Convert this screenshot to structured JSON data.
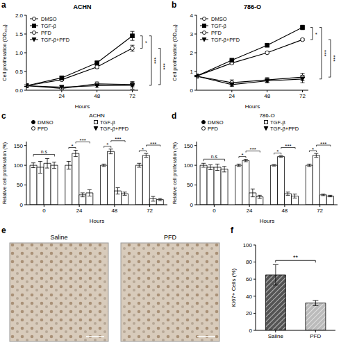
{
  "chart_data": [
    {
      "panel": "a",
      "type": "line",
      "title": "ACHN",
      "x_label": "Hours",
      "y_label": "Cell proliferation (OD₄₅₀)",
      "x": [
        0,
        24,
        48,
        72
      ],
      "xlim": [
        0,
        76
      ],
      "xticks": [
        24,
        48,
        72
      ],
      "ylim": [
        0,
        2
      ],
      "yticks": [
        {
          "value": 0,
          "label": "0.0"
        },
        {
          "value": 0.5,
          "label": "0.5"
        },
        {
          "value": 1,
          "label": "1.0"
        },
        {
          "value": 1.5,
          "label": "1.5"
        },
        {
          "value": 2,
          "label": "2.0"
        }
      ],
      "series": [
        {
          "name": "DMSO",
          "color": "#000000",
          "marker": "open_circle",
          "values": [
            0.12,
            0.28,
            0.62,
            1.12
          ],
          "errors": [
            0.02,
            0.03,
            0.04,
            0.08
          ]
        },
        {
          "name": "TGF-β",
          "color": "#000000",
          "marker": "square",
          "values": [
            0.12,
            0.33,
            0.73,
            1.45
          ],
          "errors": [
            0.02,
            0.03,
            0.04,
            0.12
          ]
        },
        {
          "name": "PFD",
          "color": "#000000",
          "marker": "open_circle",
          "values": [
            0.12,
            0.05,
            0.17,
            0.15
          ],
          "errors": [
            0.02,
            0.02,
            0.05,
            0.06
          ]
        },
        {
          "name": "TGF-β+PFD",
          "color": "#000000",
          "marker": "triangle_down",
          "values": [
            0.12,
            0.08,
            0.12,
            0.13
          ],
          "errors": [
            0.02,
            0.02,
            0.04,
            0.1
          ]
        }
      ],
      "annotations": [
        {
          "text": "*",
          "between": [
            "DMSO",
            "TGF-β"
          ]
        },
        {
          "text": "***",
          "between": [
            "TGF-β",
            "TGF-β+PFD"
          ]
        },
        {
          "text": "***",
          "between": [
            "DMSO",
            "PFD"
          ]
        }
      ]
    },
    {
      "panel": "b",
      "type": "line",
      "title": "786-O",
      "x_label": "Hours",
      "y_label": "Cell proliferation (OD₄₅₀)",
      "x": [
        0,
        24,
        48,
        72
      ],
      "xlim": [
        0,
        76
      ],
      "xticks": [
        24,
        48,
        72
      ],
      "ylim": [
        0,
        4
      ],
      "yticks": [
        0,
        1,
        2,
        3,
        4
      ],
      "series": [
        {
          "name": "DMSO",
          "color": "#000000",
          "marker": "open_circle",
          "values": [
            0.75,
            1.45,
            2.0,
            2.7
          ],
          "errors": [
            0.03,
            0.04,
            0.04,
            0.05
          ]
        },
        {
          "name": "TGF-β",
          "color": "#000000",
          "marker": "square",
          "values": [
            0.75,
            1.6,
            2.4,
            3.35
          ],
          "errors": [
            0.03,
            0.04,
            0.05,
            0.12
          ]
        },
        {
          "name": "PFD",
          "color": "#000000",
          "marker": "open_circle",
          "values": [
            0.75,
            0.4,
            0.55,
            0.7
          ],
          "errors": [
            0.03,
            0.15,
            0.12,
            0.2
          ]
        },
        {
          "name": "TGF-β+PFD",
          "color": "#000000",
          "marker": "triangle_down",
          "values": [
            0.75,
            0.3,
            0.5,
            0.6
          ],
          "errors": [
            0.03,
            0.1,
            0.1,
            0.2
          ]
        }
      ],
      "annotations": [
        {
          "text": "*",
          "between": [
            "DMSO",
            "TGF-β"
          ]
        },
        {
          "text": "***",
          "between": [
            "TGF-β",
            "TGF-β+PFD"
          ]
        },
        {
          "text": "***",
          "between": [
            "DMSO",
            "PFD"
          ]
        }
      ]
    },
    {
      "panel": "c",
      "type": "bar",
      "title": "ACHN",
      "x_label": "Hours",
      "y_label": "Relative cell proliferation (%)",
      "categories": [
        0,
        24,
        48,
        72
      ],
      "ylim": [
        0,
        160
      ],
      "yticks": [
        0,
        50,
        100,
        150
      ],
      "series": [
        {
          "name": "DMSO",
          "color": "#ffffff",
          "marker": "circle",
          "values": [
            100,
            100,
            100,
            100
          ],
          "errors": [
            6,
            10,
            3,
            5
          ]
        },
        {
          "name": "TGF-β",
          "color": "#ffffff",
          "marker": "open_square",
          "values": [
            95,
            130,
            135,
            125
          ],
          "errors": [
            15,
            8,
            6,
            5
          ]
        },
        {
          "name": "PFD",
          "color": "#ffffff",
          "marker": "open_circle",
          "values": [
            105,
            25,
            35,
            15
          ],
          "errors": [
            12,
            5,
            8,
            6
          ]
        },
        {
          "name": "TGF-β+PFD",
          "color": "#ffffff",
          "marker": "triangle_down",
          "values": [
            100,
            30,
            28,
            13
          ],
          "errors": [
            8,
            8,
            4,
            3
          ]
        }
      ],
      "annotations": [
        {
          "category": 0,
          "texts": [
            "n.s"
          ]
        },
        {
          "category": 24,
          "texts": [
            "*",
            "***"
          ]
        },
        {
          "category": 48,
          "texts": [
            "*",
            "***"
          ]
        },
        {
          "category": 72,
          "texts": [
            "*",
            "***"
          ]
        }
      ]
    },
    {
      "panel": "d",
      "type": "bar",
      "title": "786-O",
      "x_label": "Hours",
      "y_label": "Relative cell proliferation (%)",
      "categories": [
        0,
        24,
        48,
        72
      ],
      "ylim": [
        0,
        160
      ],
      "yticks": [
        0,
        50,
        100,
        150
      ],
      "series": [
        {
          "name": "DMSO",
          "color": "#ffffff",
          "marker": "circle",
          "values": [
            100,
            100,
            100,
            100
          ],
          "errors": [
            5,
            3,
            2,
            3
          ]
        },
        {
          "name": "TGF-β",
          "color": "#ffffff",
          "marker": "open_square",
          "values": [
            95,
            112,
            122,
            125
          ],
          "errors": [
            6,
            3,
            2,
            5
          ]
        },
        {
          "name": "PFD",
          "color": "#ffffff",
          "marker": "open_circle",
          "values": [
            95,
            30,
            28,
            25
          ],
          "errors": [
            8,
            10,
            4,
            2
          ]
        },
        {
          "name": "TGF-β+PFD",
          "color": "#ffffff",
          "marker": "triangle_down",
          "values": [
            90,
            20,
            22,
            22
          ],
          "errors": [
            7,
            4,
            5,
            2
          ]
        }
      ],
      "annotations": [
        {
          "category": 0,
          "texts": [
            "n.s"
          ]
        },
        {
          "category": 24,
          "texts": [
            "*",
            "***"
          ]
        },
        {
          "category": 48,
          "texts": [
            "*",
            "***"
          ]
        },
        {
          "category": 72,
          "texts": [
            "*",
            "***"
          ]
        }
      ]
    },
    {
      "panel": "e",
      "type": "image",
      "labels": [
        "Saline",
        "PFD"
      ]
    },
    {
      "panel": "f",
      "type": "bar",
      "y_label": "Ki67+ Cells (%)",
      "categories": [
        "Saline",
        "PFD"
      ],
      "values": [
        65,
        32
      ],
      "errors": [
        12,
        3
      ],
      "colors": [
        "#555555",
        "#bbbbbb"
      ],
      "ylim": [
        0,
        100
      ],
      "yticks": [
        0,
        20,
        40,
        60,
        80,
        100
      ],
      "annotations": [
        {
          "text": "**",
          "between": [
            "Saline",
            "PFD"
          ]
        }
      ]
    }
  ]
}
